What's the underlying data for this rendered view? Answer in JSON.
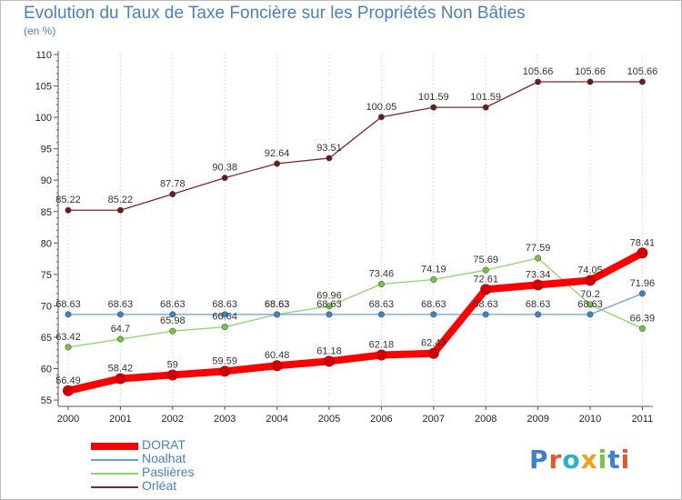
{
  "header": {
    "title": "Evolution du Taux de Taxe Foncière sur les Propriétés Non Bâties",
    "unit": "(en %)"
  },
  "logo": {
    "text": "Proxiti",
    "letters": [
      "P",
      "r",
      "o",
      "x",
      "i",
      "t",
      "i"
    ],
    "colors": [
      "#3f7fd0",
      "#e25a2b",
      "#2bb2c8",
      "#f0a020",
      "#7cc04b",
      "#3f7fd0",
      "#e25a2b"
    ]
  },
  "chart_data": {
    "type": "line",
    "title": "Evolution du Taux de Taxe Foncière sur les Propriétés Non Bâties",
    "ylabel": "(en %)",
    "xlabel": "",
    "x": [
      "2000",
      "2001",
      "2002",
      "2003",
      "2004",
      "2005",
      "2006",
      "2007",
      "2008",
      "2009",
      "2010",
      "2011"
    ],
    "ylim": [
      54,
      110
    ],
    "yticks": [
      55,
      60,
      65,
      70,
      75,
      80,
      85,
      90,
      95,
      100,
      105,
      110
    ],
    "grid": "vertical dotted",
    "legend_position": "bottom-left",
    "series": [
      {
        "name": "DORAT",
        "color": "#ff0000",
        "point_color": "#cc0000",
        "values": [
          56.49,
          58.42,
          59,
          59.59,
          60.48,
          61.18,
          62.18,
          62.43,
          72.61,
          73.34,
          74.05,
          78.41
        ],
        "labels": [
          "56.49",
          "58.42",
          "59",
          "59.59",
          "60.48",
          "61.18",
          "62.18",
          "62.43",
          "72.61",
          "73.34",
          "74.05",
          "78.41"
        ]
      },
      {
        "name": "Noalhat",
        "color": "#6aa0d0",
        "point_color": "#3a84c8",
        "values": [
          68.63,
          68.63,
          68.63,
          68.63,
          68.63,
          68.63,
          68.63,
          68.63,
          68.63,
          68.63,
          68.63,
          71.96
        ],
        "labels": [
          "68.63",
          "68.63",
          "68.63",
          "68.63",
          "68.63",
          "68.63",
          "68.63",
          "68.63",
          "68.63",
          "68.63",
          "68.63",
          "71.96"
        ]
      },
      {
        "name": "Paslières",
        "color": "#8fd46a",
        "point_color": "#6ccc3a",
        "values": [
          63.42,
          64.7,
          65.98,
          66.64,
          68.63,
          69.96,
          73.46,
          74.19,
          75.69,
          77.59,
          70.2,
          66.39
        ],
        "labels": [
          "63.42",
          "64.7",
          "65.98",
          "66.64",
          "68.63",
          "69.96",
          "73.46",
          "74.19",
          "75.69",
          "77.59",
          "70.2",
          "66.39"
        ]
      },
      {
        "name": "Orléat",
        "color": "#7a2a2a",
        "point_color": "#6a1a1a",
        "values": [
          85.22,
          85.22,
          87.78,
          90.38,
          92.64,
          93.51,
          100.05,
          101.59,
          101.59,
          105.66,
          105.66,
          105.66
        ],
        "labels": [
          "85.22",
          "85.22",
          "87.78",
          "90.38",
          "92.64",
          "93.51",
          "100.05",
          "101.59",
          "101.59",
          "105.66",
          "105.66",
          "105.66"
        ]
      }
    ]
  }
}
